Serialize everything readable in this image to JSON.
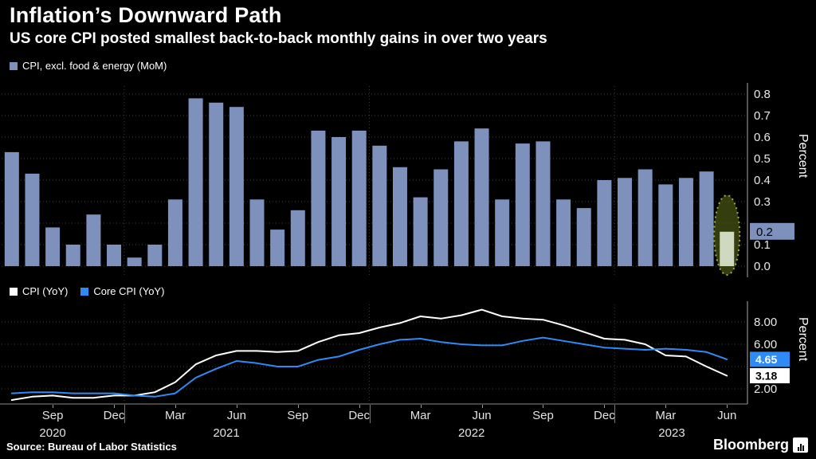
{
  "header": {
    "title": "Inflation’s Downward Path",
    "subtitle": "US core CPI posted smallest back-to-back monthly gains in over two years"
  },
  "top_panel": {
    "legend": "CPI, excl. food & energy (MoM)",
    "axis_unit": "Percent"
  },
  "bottom_panel": {
    "legend_cpi": "CPI (YoY)",
    "legend_core": "Core CPI (YoY)",
    "axis_unit": "Percent"
  },
  "footer": {
    "source": "Source: Bureau of Labor Statistics",
    "brand": "Bloomberg"
  },
  "colors": {
    "background": "#000000",
    "bar": "#7d91bc",
    "bar_highlight": "#cfd9c0",
    "highlight_fill": "rgba(92,112,26,0.55)",
    "highlight_stroke": "#a0ad3e",
    "cpi_line": "#ffffff",
    "core_line": "#2e8bf5",
    "grid": "#3b3b3b"
  },
  "x_axis": {
    "ticks": [
      {
        "label": "Sep",
        "i": 2
      },
      {
        "label": "Dec",
        "i": 5
      },
      {
        "label": "Mar",
        "i": 8
      },
      {
        "label": "Jun",
        "i": 11
      },
      {
        "label": "Sep",
        "i": 14
      },
      {
        "label": "Dec",
        "i": 17
      },
      {
        "label": "Mar",
        "i": 20
      },
      {
        "label": "Jun",
        "i": 23
      },
      {
        "label": "Sep",
        "i": 26
      },
      {
        "label": "Dec",
        "i": 29
      },
      {
        "label": "Mar",
        "i": 32
      },
      {
        "label": "Jun",
        "i": 35
      }
    ],
    "years": [
      {
        "label": "2020",
        "i": 2.0
      },
      {
        "label": "2021",
        "i": 10.5
      },
      {
        "label": "2022",
        "i": 22.5
      },
      {
        "label": "2023",
        "i": 32.3
      }
    ],
    "year_boundaries": [
      6,
      18,
      30
    ]
  },
  "chart_data": [
    {
      "panel": "top",
      "type": "bar",
      "name": "CPI, excl. food & energy (MoM)",
      "ylabel": "Percent",
      "ylim": [
        0,
        0.85
      ],
      "y_ticks": [
        "0.0",
        "0.1",
        "0.2",
        "0.3",
        "0.4",
        "0.5",
        "0.6",
        "0.7",
        "0.8"
      ],
      "months": [
        "2020-07",
        "2020-08",
        "2020-09",
        "2020-10",
        "2020-11",
        "2020-12",
        "2021-01",
        "2021-02",
        "2021-03",
        "2021-04",
        "2021-05",
        "2021-06",
        "2021-07",
        "2021-08",
        "2021-09",
        "2021-10",
        "2021-11",
        "2021-12",
        "2022-01",
        "2022-02",
        "2022-03",
        "2022-04",
        "2022-05",
        "2022-06",
        "2022-07",
        "2022-08",
        "2022-09",
        "2022-10",
        "2022-11",
        "2022-12",
        "2023-01",
        "2023-02",
        "2023-03",
        "2023-04",
        "2023-05",
        "2023-06"
      ],
      "values": [
        0.53,
        0.43,
        0.18,
        0.1,
        0.24,
        0.1,
        0.04,
        0.1,
        0.31,
        0.78,
        0.76,
        0.74,
        0.31,
        0.17,
        0.26,
        0.63,
        0.6,
        0.63,
        0.56,
        0.46,
        0.32,
        0.45,
        0.58,
        0.64,
        0.31,
        0.57,
        0.58,
        0.31,
        0.27,
        0.4,
        0.41,
        0.45,
        0.38,
        0.41,
        0.44,
        0.16
      ],
      "highlight": {
        "month": "2023-06",
        "index": 35,
        "value": 0.16,
        "axis_label": "0.2"
      }
    },
    {
      "panel": "bottom",
      "type": "line",
      "ylabel": "Percent",
      "ylim": [
        0.8,
        9.6
      ],
      "y_grid": [
        2,
        4,
        6,
        8
      ],
      "y_ticks": [
        {
          "label": "8.00",
          "value": 8
        },
        {
          "label": "6.00",
          "value": 6
        },
        {
          "label": "2.00",
          "value": 2
        }
      ],
      "months": [
        "2020-07",
        "2020-08",
        "2020-09",
        "2020-10",
        "2020-11",
        "2020-12",
        "2021-01",
        "2021-02",
        "2021-03",
        "2021-04",
        "2021-05",
        "2021-06",
        "2021-07",
        "2021-08",
        "2021-09",
        "2021-10",
        "2021-11",
        "2021-12",
        "2022-01",
        "2022-02",
        "2022-03",
        "2022-04",
        "2022-05",
        "2022-06",
        "2022-07",
        "2022-08",
        "2022-09",
        "2022-10",
        "2022-11",
        "2022-12",
        "2023-01",
        "2023-02",
        "2023-03",
        "2023-04",
        "2023-05",
        "2023-06"
      ],
      "series": [
        {
          "name": "CPI (YoY)",
          "color": "#ffffff",
          "end_label": "3.18",
          "values": [
            1.0,
            1.3,
            1.4,
            1.2,
            1.2,
            1.4,
            1.4,
            1.7,
            2.6,
            4.2,
            5.0,
            5.4,
            5.4,
            5.3,
            5.4,
            6.2,
            6.8,
            7.0,
            7.5,
            7.9,
            8.5,
            8.3,
            8.6,
            9.1,
            8.5,
            8.3,
            8.2,
            7.7,
            7.1,
            6.5,
            6.4,
            6.0,
            5.0,
            4.9,
            4.0,
            3.18
          ]
        },
        {
          "name": "Core CPI (YoY)",
          "color": "#2e8bf5",
          "end_label": "4.65",
          "values": [
            1.6,
            1.7,
            1.7,
            1.6,
            1.6,
            1.6,
            1.4,
            1.3,
            1.6,
            3.0,
            3.8,
            4.5,
            4.3,
            4.0,
            4.0,
            4.6,
            4.9,
            5.5,
            6.0,
            6.4,
            6.5,
            6.2,
            6.0,
            5.9,
            5.9,
            6.3,
            6.6,
            6.3,
            6.0,
            5.7,
            5.6,
            5.5,
            5.6,
            5.5,
            5.3,
            4.65
          ]
        }
      ]
    }
  ]
}
